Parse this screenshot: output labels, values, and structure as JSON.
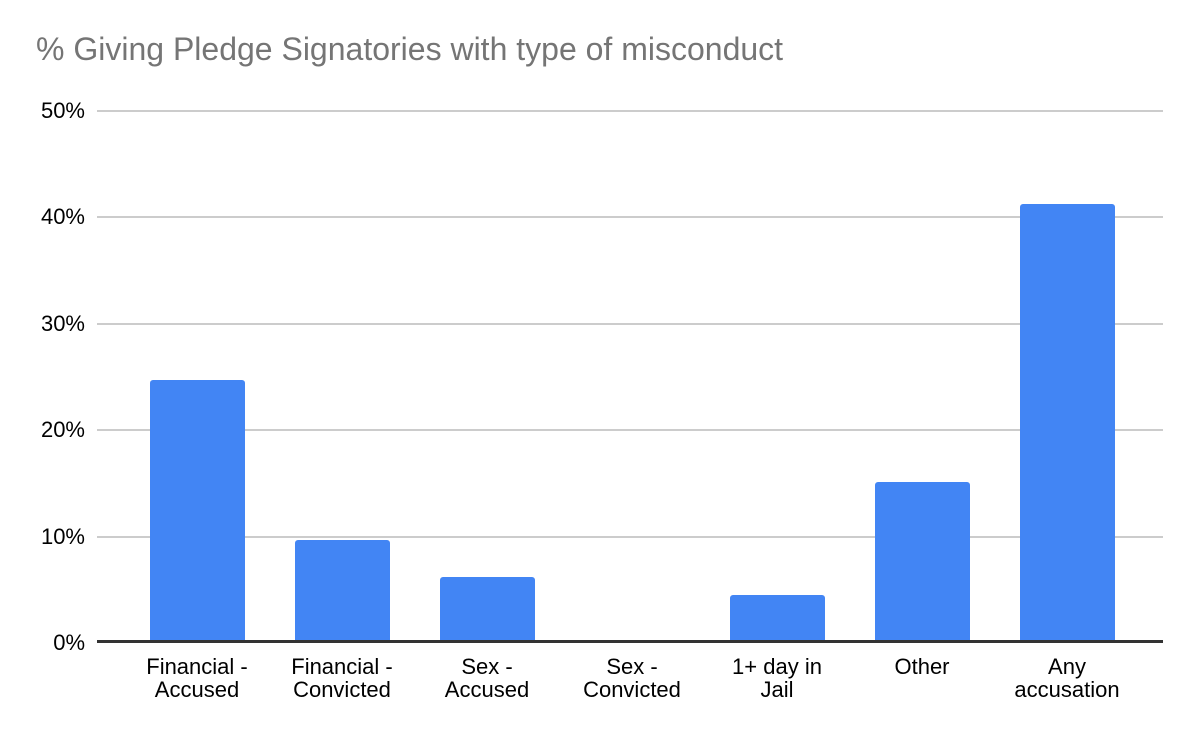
{
  "chart_data": {
    "type": "bar",
    "title": "% Giving Pledge Signatories with type of misconduct",
    "categories": [
      "Financial - Accused",
      "Financial - Convicted",
      "Sex - Accused",
      "Sex - Convicted",
      "1+ day in Jail",
      "Other",
      "Any accusation"
    ],
    "category_label_lines": [
      [
        "Financial -",
        "Accused"
      ],
      [
        "Financial -",
        "Convicted"
      ],
      [
        "Sex -",
        "Accused"
      ],
      [
        "Sex -",
        "Convicted"
      ],
      [
        "1+ day in",
        "Jail"
      ],
      [
        "Other"
      ],
      [
        "Any",
        "accusation"
      ]
    ],
    "values": [
      24.5,
      9.5,
      6.0,
      0,
      4.3,
      14.9,
      41.1
    ],
    "xlabel": "",
    "ylabel": "",
    "ylim": [
      0,
      50
    ],
    "ytick_step": 10,
    "ytick_labels": [
      "0%",
      "10%",
      "20%",
      "30%",
      "40%",
      "50%"
    ],
    "grid": true,
    "legend_position": "none",
    "colors": {
      "bar": "#4285F4",
      "gridline": "#cccccc",
      "axis_line": "#333333",
      "title_text": "#757575",
      "tick_text": "#000000",
      "background": "#ffffff"
    }
  }
}
